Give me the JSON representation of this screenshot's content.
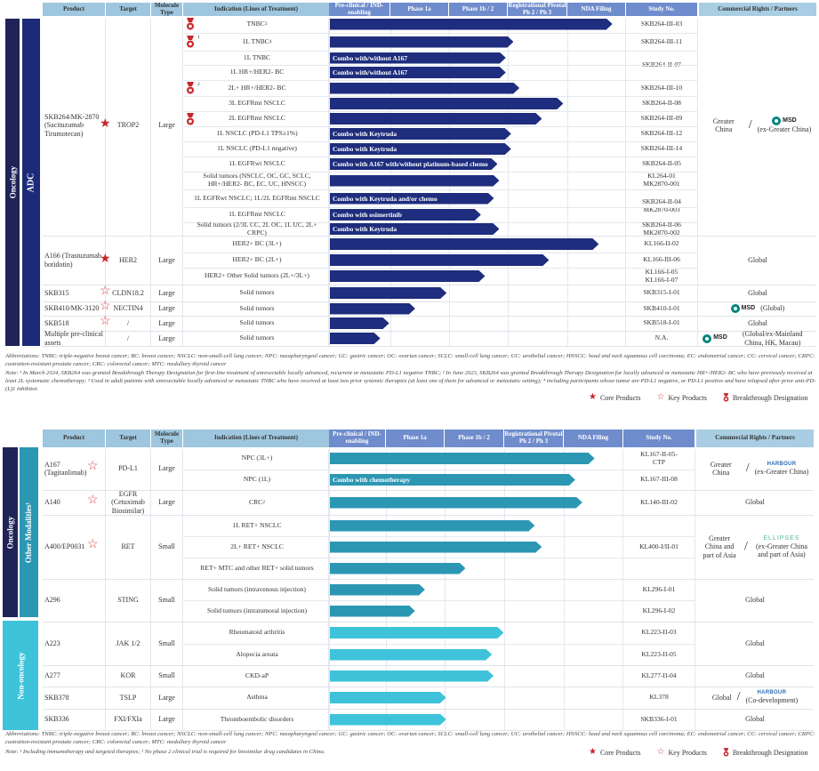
{
  "top": {
    "headers": {
      "product": "Product",
      "target": "Target",
      "molecule_type": "Molecule Type",
      "indication": "Indication (Lines of Treatment)",
      "phases": [
        "Pre-clinical / IND-enabling",
        "Phase 1a",
        "Phase 1b / 2",
        "Registrational Pivotal  Ph 2 / Ph 3",
        "NDA Filing"
      ],
      "study": "Study No.",
      "rights": "Commercial Rights / Partners"
    },
    "category_outer": "Oncology",
    "category_inner": "ADC",
    "products": [
      {
        "name": "SKB264/MK-2870 (Sacituzumab Tirumotecan)",
        "star": "core",
        "target": "TROP2",
        "molecule": "Large",
        "rights": {
          "left": "Greater China",
          "partner": "MSD",
          "right": "(ex-Greater China)"
        },
        "indications": [
          {
            "label": "TNBC",
            "sup": "3",
            "medal": true,
            "medal_sup": "",
            "progress": 4.77,
            "combo": "",
            "study": "SKB264-III-03"
          },
          {
            "label": "1L TNBC",
            "sup": "4",
            "medal": true,
            "medal_sup": "1",
            "progress": 3.1,
            "combo": "",
            "study": "SKB264-III-11"
          },
          {
            "label": "1L TNBC",
            "sup": "",
            "medal": false,
            "progress": 2.97,
            "combo": "Combo with/without A167",
            "study": "SKB264-II-07"
          },
          {
            "label": "1L HR+/HER2- BC",
            "sup": "",
            "medal": false,
            "progress": 2.97,
            "combo": "Combo with/without A167",
            "study": ""
          },
          {
            "label": "2L+ HR+/HER2- BC",
            "sup": "",
            "medal": true,
            "medal_sup": "2",
            "progress": 3.2,
            "combo": "",
            "study": "SKB264-III-10"
          },
          {
            "label": "3L EGFRmt NSCLC",
            "sup": "",
            "medal": false,
            "progress": 3.94,
            "combo": "",
            "study": "SKB264-II-08"
          },
          {
            "label": "2L EGFRmt NSCLC",
            "sup": "",
            "medal": true,
            "medal_sup": "",
            "progress": 3.58,
            "combo": "",
            "study": "SKB264-III-09"
          },
          {
            "label": "1L NSCLC (PD-L1 TPS≥1%)",
            "sup": "",
            "medal": false,
            "progress": 3.06,
            "combo": "Combo with Keytruda",
            "study": "SKB264-III-12"
          },
          {
            "label": "1L NSCLC (PD-L1 negative)",
            "sup": "",
            "medal": false,
            "progress": 3.06,
            "combo": "Combo with Keytruda",
            "study": "SKB264-III-14"
          },
          {
            "label": "1L EGFRwt NSCLC",
            "sup": "",
            "medal": false,
            "progress": 2.83,
            "combo": "Combo with A167 with/without platinum-based chemo",
            "study": "SKB264-II-05"
          },
          {
            "label": "Solid tumors (NSCLC, OC, GC, SCLC, HR+/HER2- BC, EC, UC, HNSCC)",
            "sup": "",
            "medal": false,
            "progress": 2.86,
            "combo": "",
            "study": "KL264-01 MK2870-001"
          },
          {
            "label": "1L EGFRwt NSCLC; 1L/2L EGFRmt NSCLC",
            "sup": "",
            "medal": false,
            "progress": 2.77,
            "combo": "Combo with Keytruda and/or chemo",
            "study": "SKB264-II-04 MK2870-003"
          },
          {
            "label": "1L EGFRmt NSCLC",
            "sup": "",
            "medal": false,
            "progress": 2.55,
            "combo": "Combo with osimertinib",
            "study": ""
          },
          {
            "label": "Solid tumors (2/3L CC, 2L OC, 1L UC, 2L+ CRPC)",
            "sup": "",
            "medal": false,
            "progress": 2.86,
            "combo": "Combo with Keytruda",
            "study": "SKB264-II-06 MK2870-002"
          }
        ]
      },
      {
        "name": "A166 (Trastuzumab botidotin)",
        "star": "core",
        "target": "HER2",
        "molecule": "Large",
        "rights": {
          "text": "Global"
        },
        "indications": [
          {
            "label": "HER2+ BC (3L+)",
            "progress": 4.54,
            "combo": "",
            "study": "KL166-II-02"
          },
          {
            "label": "HER2+ BC (2L+)",
            "progress": 3.7,
            "combo": "",
            "study": "KL166-III-06"
          },
          {
            "label": "HER2+ Other Solid tumors (2L+/3L+)",
            "progress": 2.62,
            "combo": "",
            "study": "KL166-I-05 KL166-I-07"
          }
        ]
      },
      {
        "name": "SKB315",
        "star": "key",
        "target": "CLDN18.2",
        "molecule": "Large",
        "rights": {
          "text": "Global"
        },
        "indications": [
          {
            "label": "Solid tumors",
            "progress": 1.97,
            "combo": "",
            "study": "SKB315-I-01"
          }
        ]
      },
      {
        "name": "SKB410/MK-3120",
        "star": "key",
        "target": "NECTIN4",
        "molecule": "Large",
        "rights": {
          "partner": "MSD",
          "text": "(Global)"
        },
        "indications": [
          {
            "label": "Solid tumors",
            "progress": 1.44,
            "combo": "",
            "study": "SKB410-I-01"
          }
        ]
      },
      {
        "name": "SKB518",
        "star": "key",
        "target": "/",
        "molecule": "Large",
        "rights": {
          "text": "Global"
        },
        "indications": [
          {
            "label": "Solid tumors",
            "progress": 1.0,
            "combo": "",
            "study": "SKB518-I-01"
          }
        ]
      },
      {
        "name": "Multiple pre-clinical assets",
        "star": "",
        "target": "/",
        "molecule": "Large",
        "rights": {
          "partner": "MSD",
          "text": "(Global/ex-Mainland China, HK, Macau)"
        },
        "indications": [
          {
            "label": "Solid tumors",
            "progress": 0.85,
            "combo": "",
            "study": "N.A."
          }
        ]
      }
    ],
    "notes": {
      "abbreviations": "Abbreviations: TNBC: triple-negative breast cancer; BC: breast cancer; NSCLC: non-small-cell lung cancer; NPC: nasopharyngeal cancer; GC: gastric cancer; OC: ovarian cancer; SCLC: small-cell lung cancer; UC: urothelial cancer; HNSCC: head and neck squamous cell carcinoma; EC: endometrial cancer; CC: cervical cancer; CRPC: castration-resistant prostate cancer; CRC: colorectal cancer; MTC: medullary thyroid cancer",
      "note": "Note: ¹ In March 2024, SKB264 was granted Breakthrough Therapy Designation for first-line treatment of unresectable locally advanced, recurrent or metastatic PD-L1 negative TNBC; ² In June 2023, SKB264 was granted Breakthrough Therapy Designation for locally advanced or metastatic HR+/HER2- BC who have previously received at least 2L systematic chemotherapy; ³ Used in adult patients with unresectable locally advanced or metastatic TNBC who have received at least two prior systemic therapies (at least one of them for advanced or metastatic setting); ⁴ including participants whose tumor are PD-L1 negative, or PD-L1 positive and have relapsed after prior anti-PD-(L)1 inhibitor."
    }
  },
  "bottom": {
    "headers": {
      "product": "Product",
      "target": "Target",
      "molecule_type": "Molecule Type",
      "indication": "Indication (Lines of Treatment)",
      "phases": [
        "Pre-clinical / IND-enabling",
        "Phase 1a",
        "Phase 1b / 2",
        "Registrational Pivotal  Ph 2 / Ph 3",
        "NDA Filing"
      ],
      "study": "Study No.",
      "rights": "Commercial Rights / Partners"
    },
    "category_oncology": "Oncology",
    "category_other": "Other Modalities¹",
    "category_nononc": "Non-oncology",
    "products": [
      {
        "name": "A167 (Tagitanlimab)",
        "star": "key",
        "target": "PD-L1",
        "molecule": "Large",
        "rights": {
          "left": "Greater China",
          "partner": "HARBOUR",
          "right": "(ex-Greater China)"
        },
        "indications": [
          {
            "label": "NPC (3L+)",
            "progress": 4.51,
            "combo": "",
            "study": "KL167-II-05-CTP"
          },
          {
            "label": "NPC (1L)",
            "progress": 4.18,
            "combo": "Combo with chemotherapy",
            "study": "KL167-III-08"
          }
        ]
      },
      {
        "name": "A140",
        "star": "key",
        "target": "EGFR (Cetuximab Biosimilar)",
        "molecule": "Large",
        "rights": {
          "text": "Global"
        },
        "indications": [
          {
            "label": "CRC",
            "sup": "2",
            "progress": 4.3,
            "combo": "",
            "study": "KL140-III-02"
          }
        ]
      },
      {
        "name": "A400/EP0031",
        "star": "key",
        "target": "RET",
        "molecule": "Small",
        "rights": {
          "left": "Greater China and part of Asia",
          "partner": "ELLIPSES",
          "right": "(ex-Greater China and part of Asia)"
        },
        "indications": [
          {
            "label": "1L RET+ NSCLC",
            "progress": 3.49,
            "combo": "",
            "study": "KL400-I/II-01"
          },
          {
            "label": "2L+ RET+ NSCLC",
            "progress": 3.61,
            "combo": "",
            "study": ""
          },
          {
            "label": "RET+ MTC and other RET+ solid tumors",
            "progress": 2.31,
            "combo": "",
            "study": ""
          }
        ]
      },
      {
        "name": "A296",
        "star": "",
        "target": "STING",
        "molecule": "Small",
        "rights": {
          "text": "Global"
        },
        "indications": [
          {
            "label": "Solid tumors (intravenous injection)",
            "progress": 1.62,
            "combo": "",
            "study": "KL296-I-01"
          },
          {
            "label": "Solid tumors (intratumoral injection)",
            "progress": 1.45,
            "combo": "",
            "study": "KL296-I-02"
          }
        ]
      },
      {
        "name": "A223",
        "star": "",
        "target": "JAK 1/2",
        "molecule": "Small",
        "rights": {
          "text": "Global"
        },
        "indications": [
          {
            "label": "Rheumatoid arthritis",
            "progress": 2.96,
            "combo": "",
            "study": "KL223-II-03"
          },
          {
            "label": "Alopecia areata",
            "progress": 2.76,
            "combo": "",
            "study": "KL223-II-05"
          }
        ]
      },
      {
        "name": "A277",
        "star": "",
        "target": "KOR",
        "molecule": "Small",
        "rights": {
          "text": "Global"
        },
        "indications": [
          {
            "label": "CKD-aP",
            "progress": 2.79,
            "combo": "",
            "study": "KL277-II-04"
          }
        ]
      },
      {
        "name": "SKB378",
        "star": "",
        "target": "TSLP",
        "molecule": "Large",
        "rights": {
          "left": "Global",
          "partner": "HARBOUR",
          "right": "(Co-development)"
        },
        "indications": [
          {
            "label": "Asthma",
            "progress": 1.98,
            "combo": "",
            "study": "KL378"
          }
        ]
      },
      {
        "name": "SKB336",
        "star": "",
        "target": "FXI/FXIa",
        "molecule": "Large",
        "rights": {
          "text": "Global"
        },
        "indications": [
          {
            "label": "Thromboembolic disorders",
            "progress": 1.98,
            "combo": "",
            "study": "SKB336-I-01"
          }
        ]
      }
    ],
    "notes": {
      "abbreviations": "Abbreviations: TNBC: triple-negative breast cancer; BC: breast cancer; NSCLC: non-small-cell lung cancer; NPC: nasopharyngeal cancer; GC: gastric cancer; OC: ovarian cancer; SCLC: small-cell lung cancer; UC: urothelial cancer; HNSCC: head and neck squamous cell carcinoma; EC: endometrial cancer; CC: cervical cancer; CRPC: castration-resistant prostate cancer; CRC: colorectal cancer; MTC: medullary thyroid cancer",
      "note": "Note: ¹ Including immunotherapy and targeted therapies; ² No phase 2 clinical trial is required for biosimilar drug candidates in China."
    }
  },
  "legend": {
    "core": "Core Products",
    "key": "Key Products",
    "breakthrough": "Breakthrough Designation"
  },
  "colors": {
    "navy_bar": "#1e2d7d",
    "teal_bar": "#2b97b3",
    "cyan_bar": "#3ec3da",
    "oncology_cat": "#1f2357",
    "adc_cat": "#1c2a78",
    "other_cat": "#2b97b3",
    "nononc_cat": "#3ec3da",
    "header": "#9ec6de",
    "phase_header": "#6f8ccc",
    "star": "#c8262b"
  }
}
